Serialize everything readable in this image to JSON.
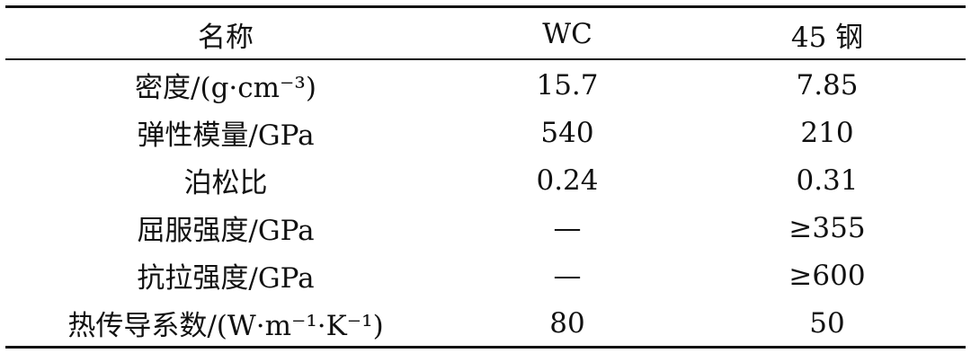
{
  "table": {
    "headers": [
      "名称",
      "WC",
      "45 钢"
    ],
    "rows": [
      [
        "密度/(g·cm⁻³)",
        "15.7",
        "7.85"
      ],
      [
        "弹性模量/GPa",
        "540",
        "210"
      ],
      [
        "泊松比",
        "0.24",
        "0.31"
      ],
      [
        "屈服强度/GPa",
        "—",
        "≥355"
      ],
      [
        "抗拉强度/GPa",
        "—",
        "≥600"
      ],
      [
        "热传导系数/(W·m⁻¹·K⁻¹)",
        "80",
        "50"
      ]
    ]
  }
}
